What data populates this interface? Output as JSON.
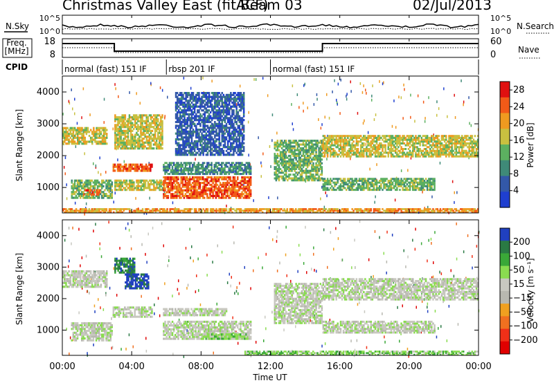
{
  "header": {
    "title": "Christmas Valley East (fitACF)",
    "beam": "Beam 03",
    "date": "02/Jul/2013"
  },
  "strip_panels": {
    "nsky_label": "N.Sky",
    "nsearch_label": "N.Search",
    "noise_ticks": [
      "10^5",
      "10^0"
    ],
    "freq_label_top": "Freq.",
    "freq_label_bottom": "[MHz]",
    "freq_ticks": [
      "18",
      "8"
    ],
    "nave_label": "Nave",
    "nave_ticks": [
      "60",
      "0"
    ],
    "cpid_label": "CPID",
    "cpid_segments": [
      {
        "label": "normal (fast) 151 IF",
        "start_h": 0,
        "end_h": 6
      },
      {
        "label": "rbsp 201 IF",
        "start_h": 6,
        "end_h": 12
      },
      {
        "label": "normal (fast) 151 IF",
        "start_h": 12,
        "end_h": 24
      }
    ]
  },
  "colors": {
    "power": [
      "#1f3fd0",
      "#3358a8",
      "#3f8a78",
      "#5cb060",
      "#c8c040",
      "#ef9a20",
      "#f25a18",
      "#e01010"
    ],
    "velocity": [
      "#2040c0",
      "#2a7a44",
      "#3aa838",
      "#8adc50",
      "#c8c8c0",
      "#b8b8b0",
      "#f0a020",
      "#f07020",
      "#f03018",
      "#e00000"
    ]
  },
  "chart_data": [
    {
      "type": "heatmap",
      "name": "power",
      "ylabel": "Slant Range [km]",
      "yticks": [
        1000,
        2000,
        3000,
        4000
      ],
      "ylim": [
        200,
        4500
      ],
      "xlim": [
        0,
        24
      ],
      "colorbar_label": "Power [dB]",
      "colorbar_ticks": [
        4,
        8,
        12,
        16,
        20,
        24,
        28
      ],
      "colorbar_range": [
        0,
        30
      ],
      "regions": [
        {
          "t0": 0.0,
          "t1": 2.6,
          "r0": 2350,
          "r1": 2900,
          "level": 4
        },
        {
          "t0": 0.5,
          "t1": 2.9,
          "r0": 650,
          "r1": 1250,
          "level": 3
        },
        {
          "t0": 1.2,
          "t1": 2.2,
          "r0": 750,
          "r1": 950,
          "level": 6
        },
        {
          "t0": 2.9,
          "t1": 5.2,
          "r0": 1500,
          "r1": 1750,
          "level": 6
        },
        {
          "t0": 3.0,
          "t1": 5.8,
          "r0": 2200,
          "r1": 3300,
          "level": 4
        },
        {
          "t0": 3.0,
          "t1": 5.9,
          "r0": 900,
          "r1": 1250,
          "level": 4
        },
        {
          "t0": 5.8,
          "t1": 10.9,
          "r0": 650,
          "r1": 1350,
          "level": 6
        },
        {
          "t0": 5.8,
          "t1": 10.9,
          "r0": 1400,
          "r1": 1800,
          "level": 2
        },
        {
          "t0": 6.5,
          "t1": 10.5,
          "r0": 2000,
          "r1": 4000,
          "level": 1
        },
        {
          "t0": 12.2,
          "t1": 15.0,
          "r0": 1200,
          "r1": 2500,
          "level": 3
        },
        {
          "t0": 15.0,
          "t1": 24.0,
          "r0": 1950,
          "r1": 2650,
          "level": 4
        },
        {
          "t0": 15.0,
          "t1": 21.5,
          "r0": 900,
          "r1": 1300,
          "level": 3
        },
        {
          "t0": 0.0,
          "t1": 24.0,
          "r0": 200,
          "r1": 350,
          "level": 5
        }
      ]
    },
    {
      "type": "heatmap",
      "name": "velocity",
      "ylabel": "Slant Range [km]",
      "xlabel": "Time UT",
      "yticks": [
        1000,
        2000,
        3000,
        4000
      ],
      "xticks": [
        "00:00",
        "04:00",
        "08:00",
        "12:00",
        "16:00",
        "20:00",
        "00:00"
      ],
      "ylim": [
        200,
        4500
      ],
      "xlim": [
        0,
        24
      ],
      "colorbar_label": "Velocity [m s⁻¹]",
      "colorbar_ticks": [
        200,
        100,
        50,
        15,
        -15,
        -50,
        -100,
        -200
      ],
      "colorbar_range": [
        -250,
        250
      ],
      "regions": [
        {
          "t0": 0.0,
          "t1": 2.6,
          "r0": 2350,
          "r1": 2900,
          "level": 4
        },
        {
          "t0": 0.5,
          "t1": 2.9,
          "r0": 650,
          "r1": 1250,
          "level": 4
        },
        {
          "t0": 2.9,
          "t1": 5.2,
          "r0": 1400,
          "r1": 1750,
          "level": 4
        },
        {
          "t0": 3.0,
          "t1": 4.2,
          "r0": 2800,
          "r1": 3300,
          "level": 1
        },
        {
          "t0": 3.6,
          "t1": 5.0,
          "r0": 2300,
          "r1": 2800,
          "level": 0
        },
        {
          "t0": 5.8,
          "t1": 10.9,
          "r0": 700,
          "r1": 1300,
          "level": 4
        },
        {
          "t0": 5.8,
          "t1": 9.5,
          "r0": 1450,
          "r1": 1700,
          "level": 4
        },
        {
          "t0": 12.2,
          "t1": 15.0,
          "r0": 1200,
          "r1": 2500,
          "level": 4
        },
        {
          "t0": 15.0,
          "t1": 24.0,
          "r0": 1950,
          "r1": 2650,
          "level": 4
        },
        {
          "t0": 15.0,
          "t1": 21.5,
          "r0": 900,
          "r1": 1300,
          "level": 4
        },
        {
          "t0": 8.0,
          "t1": 10.8,
          "r0": 700,
          "r1": 900,
          "level": 3
        },
        {
          "t0": 10.5,
          "t1": 24.0,
          "r0": 200,
          "r1": 350,
          "level": 3
        }
      ]
    }
  ]
}
